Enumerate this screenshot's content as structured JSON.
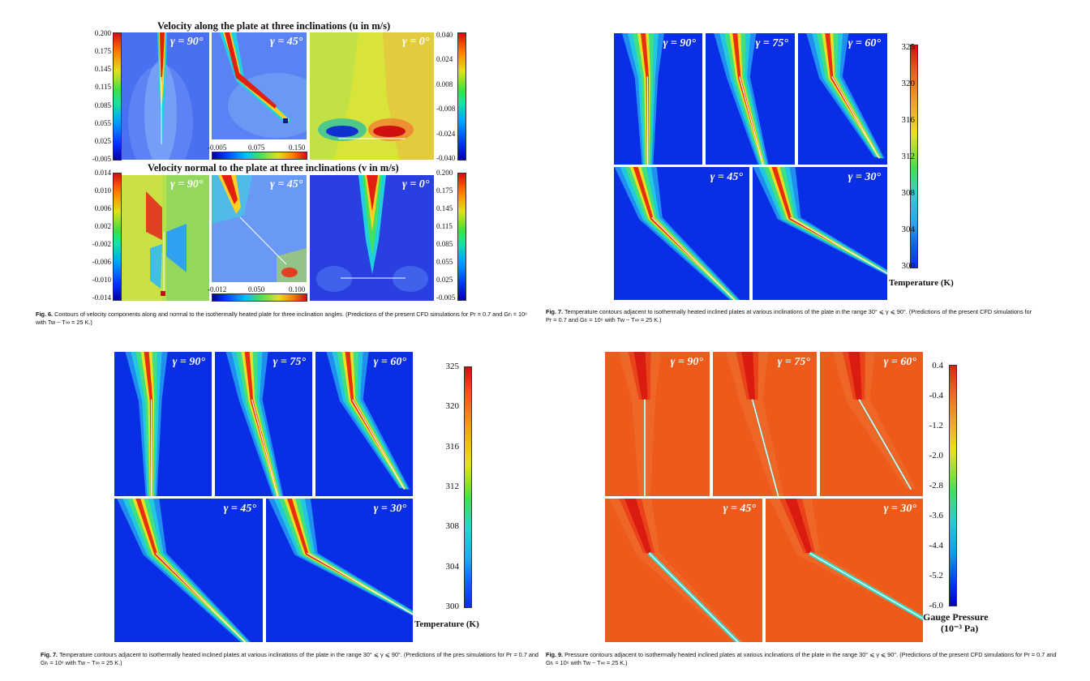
{
  "fig6": {
    "title_u": "Velocity along the plate at three inclinations (u in m/s)",
    "title_v": "Velocity normal to the plate at three inclinations (v in m/s)",
    "gamma_labels": [
      "γ = 90°",
      "γ = 45°",
      "γ = 0°"
    ],
    "u_left_ticks": [
      "0.200",
      "0.175",
      "0.145",
      "0.115",
      "0.085",
      "0.055",
      "0.025",
      "-0.005"
    ],
    "u_right_ticks": [
      "0.040",
      "0.024",
      "0.008",
      "-0.008",
      "-0.024",
      "-0.040"
    ],
    "u_mid_ticks": [
      "-0.005",
      "0.075",
      "0.150"
    ],
    "v_left_ticks": [
      "0.014",
      "0.010",
      "0.006",
      "0.002",
      "-0.002",
      "-0.006",
      "-0.010",
      "-0.014"
    ],
    "v_right_ticks": [
      "0.200",
      "0.175",
      "0.145",
      "0.115",
      "0.085",
      "0.055",
      "0.025",
      "-0.005"
    ],
    "v_mid_ticks": [
      "-0.012",
      "0.050",
      "0.100"
    ],
    "caption_label": "Fig. 6.",
    "caption_text": "Contours of velocity components along and normal to the isothermally heated plate for three inclination angles. (Predictions of the present CFD simulations for Pr = 0.7 and Grₗ = 10⁶ with Tw − T∞ = 25 K.)"
  },
  "fig7": {
    "gamma_labels": [
      "γ = 90°",
      "γ = 75°",
      "γ = 60°",
      "γ = 45°",
      "γ = 30°"
    ],
    "ticks": [
      "325",
      "320",
      "316",
      "312",
      "308",
      "304",
      "300"
    ],
    "unit": "Temperature (K)",
    "caption_label": "Fig. 7.",
    "caption_text": "Temperature contours adjacent to isothermally heated inclined plates at various inclinations of the plate in the range 30° ⩽ γ ⩽ 90°. (Predictions of the present CFD simulations for Pr = 0.7 and Grₗ = 10⁶ with Tw − T∞ = 25 K.)"
  },
  "fig7b": {
    "gamma_labels": [
      "γ = 90°",
      "γ = 75°",
      "γ = 60°",
      "γ = 45°",
      "γ = 30°"
    ],
    "ticks": [
      "325",
      "320",
      "316",
      "312",
      "308",
      "304",
      "300"
    ],
    "unit": "Temperature (K)",
    "caption_label": "Fig. 7.",
    "caption_text": "Temperature contours adjacent to isothermally heated inclined plates at various inclinations of the plate in the range 30° ⩽ γ ⩽ 90°. (Predictions of the pres simulations for Pr = 0.7 and Grₗ = 10⁶ with Tw − T∞ = 25 K.)"
  },
  "fig9": {
    "gamma_labels": [
      "γ = 90°",
      "γ = 75°",
      "γ = 60°",
      "γ = 45°",
      "γ = 30°"
    ],
    "ticks": [
      "0.4",
      "-0.4",
      "-1.2",
      "-2.0",
      "-2.8",
      "-3.6",
      "-4.4",
      "-5.2",
      "-6.0"
    ],
    "unit_line1": "Gauge Pressure",
    "unit_line2": "(10⁻³ Pa)",
    "caption_label": "Fig. 9.",
    "caption_text": "Pressure contours adjacent to isothermally heated inclined plates at various inclinations of the plate in the range 30° ⩽ γ ⩽ 90°. (Predictions of the present CFD simulations for Pr = 0.7 and Grₗ = 10⁶ with Tw − T∞ = 25 K.)"
  },
  "colors": {
    "field_blue": "#0a2ee6",
    "pressure_orange": "#ee5a1a",
    "plume_red": "#e02010",
    "u0_yellow": "#d6e23a"
  }
}
